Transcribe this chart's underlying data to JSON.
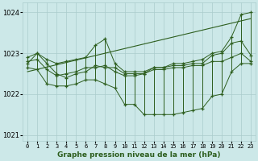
{
  "hours": [
    0,
    1,
    2,
    3,
    4,
    5,
    6,
    7,
    8,
    9,
    10,
    11,
    12,
    13,
    14,
    15,
    16,
    17,
    18,
    19,
    20,
    21,
    22,
    23
  ],
  "upper": [
    1022.9,
    1023.0,
    1022.85,
    1022.75,
    1022.8,
    1022.85,
    1022.9,
    1023.2,
    1023.35,
    1022.75,
    1022.55,
    1022.55,
    1022.55,
    1022.65,
    1022.65,
    1022.75,
    1022.75,
    1022.8,
    1022.85,
    1023.0,
    1023.05,
    1023.4,
    1023.95,
    1024.0
  ],
  "lower": [
    1022.65,
    1022.6,
    1022.25,
    1022.2,
    1022.2,
    1022.25,
    1022.35,
    1022.35,
    1022.25,
    1022.15,
    1021.75,
    1021.75,
    1021.5,
    1021.5,
    1021.5,
    1021.5,
    1021.55,
    1021.6,
    1021.65,
    1021.95,
    1022.0,
    1022.55,
    1022.75,
    1022.75
  ],
  "avg1": [
    1022.8,
    1022.85,
    1022.6,
    1022.45,
    1022.5,
    1022.55,
    1022.65,
    1022.65,
    1022.7,
    1022.55,
    1022.45,
    1022.45,
    1022.5,
    1022.6,
    1022.6,
    1022.65,
    1022.65,
    1022.7,
    1022.7,
    1022.8,
    1022.8,
    1022.9,
    1023.0,
    1022.8
  ],
  "avg2": [
    1022.75,
    1023.0,
    1022.75,
    1022.5,
    1022.4,
    1022.5,
    1022.55,
    1022.7,
    1022.65,
    1022.65,
    1022.5,
    1022.5,
    1022.5,
    1022.65,
    1022.65,
    1022.7,
    1022.7,
    1022.75,
    1022.75,
    1022.95,
    1023.0,
    1023.25,
    1023.3,
    1022.95
  ],
  "trend_x": [
    0,
    23
  ],
  "trend_y": [
    1022.55,
    1023.85
  ],
  "bg_color": "#cce8e8",
  "line_color": "#2d5e1e",
  "grid_color": "#aacccc",
  "ylim": [
    1020.85,
    1024.25
  ],
  "yticks": [
    1021,
    1022,
    1023,
    1024
  ],
  "xlim": [
    -0.5,
    23.5
  ],
  "title": "Graphe pression niveau de la mer (hPa)"
}
